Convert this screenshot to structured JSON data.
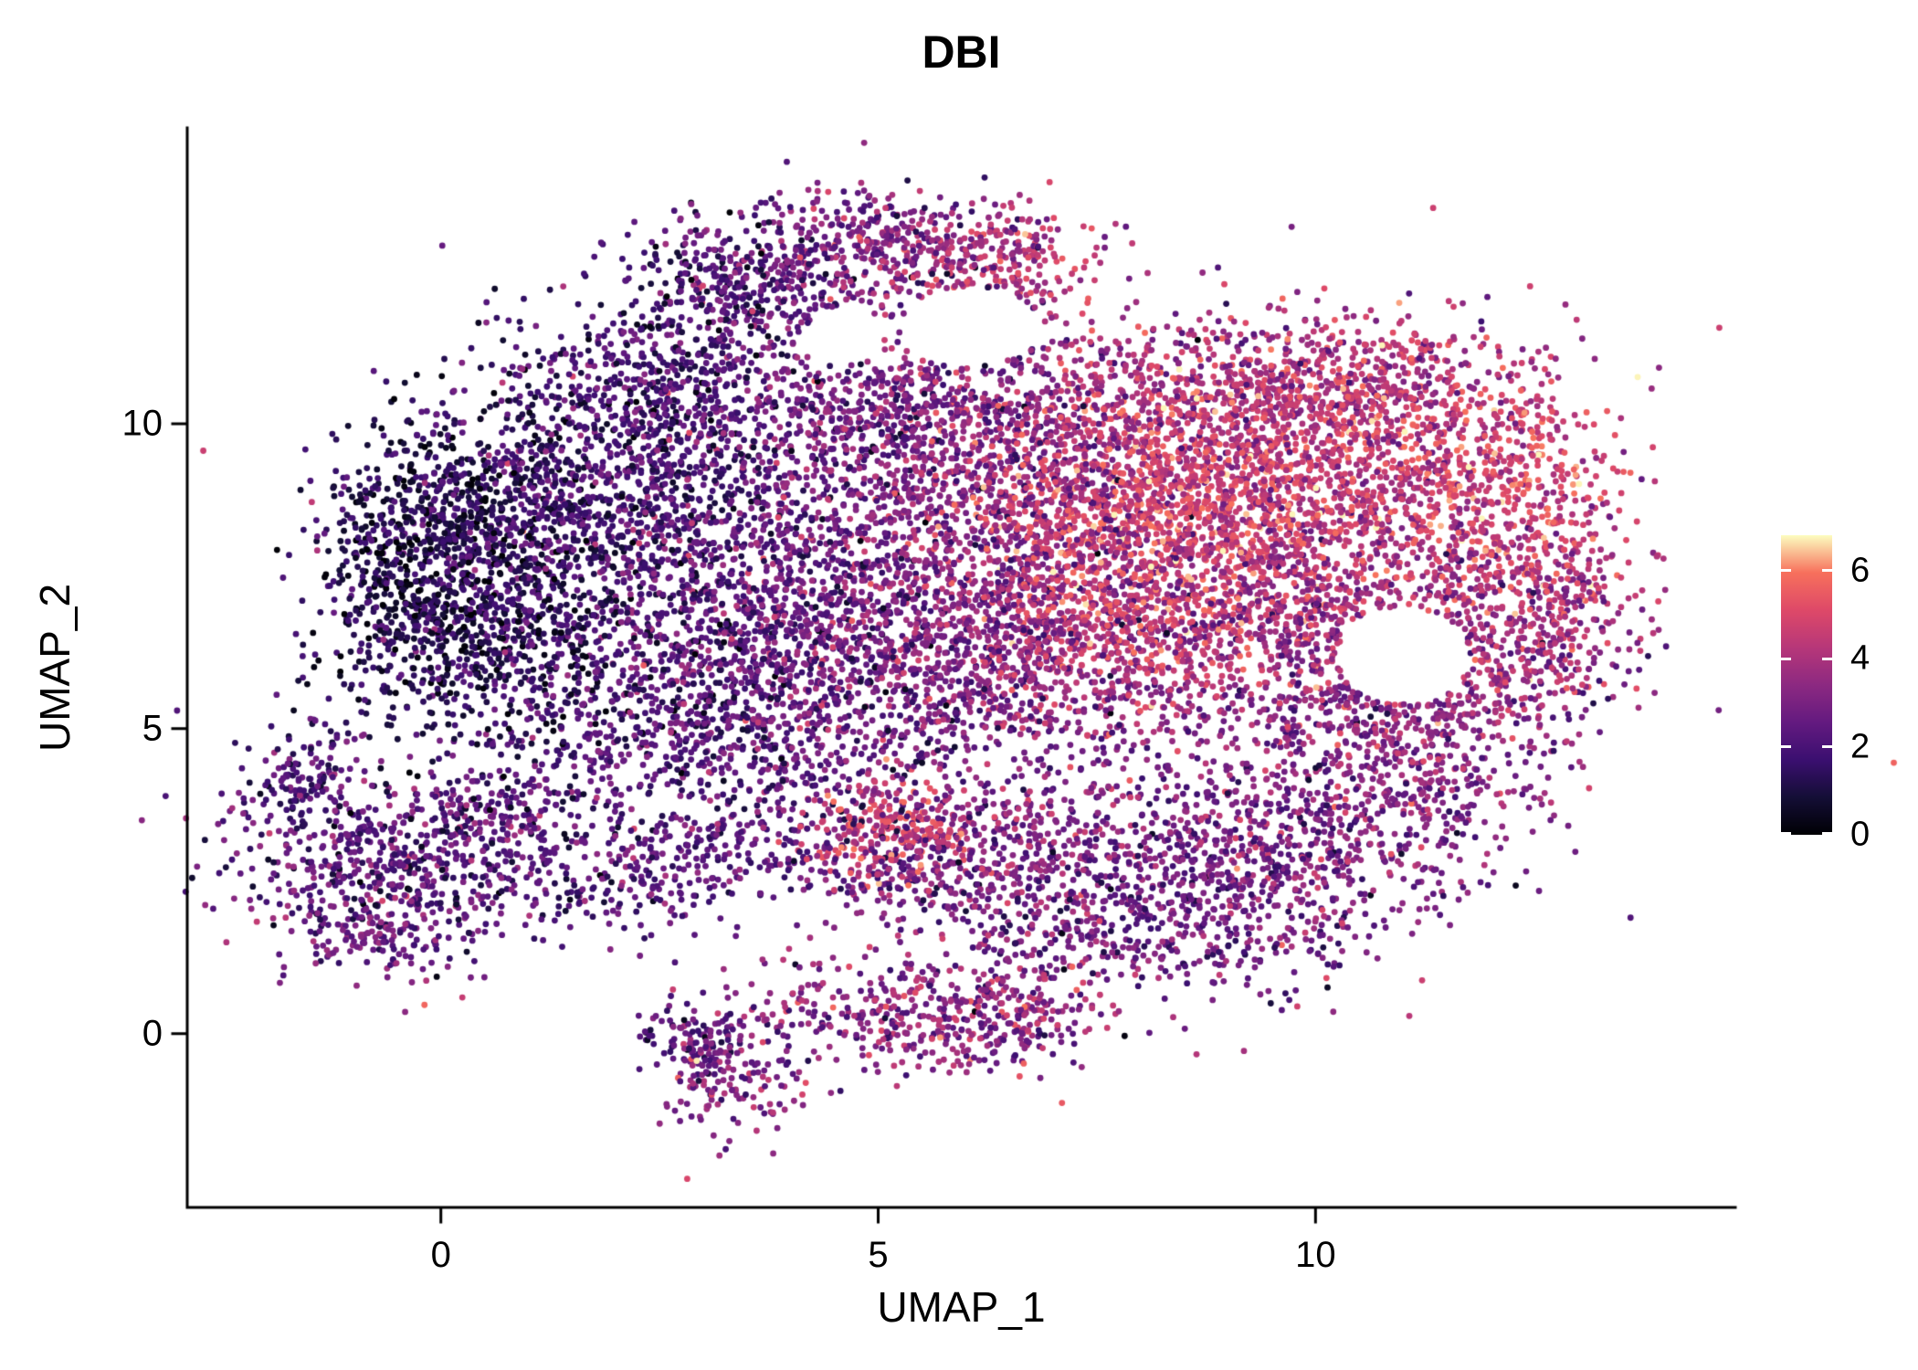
{
  "chart_data": {
    "type": "scatter",
    "title": "DBI",
    "xlabel": "UMAP_1",
    "ylabel": "UMAP_2",
    "xticks": [
      0,
      5,
      10
    ],
    "xtick_labels": [
      "0",
      "5",
      "10"
    ],
    "yticks": [
      0,
      5,
      10
    ],
    "ytick_labels": [
      "0",
      "5",
      "10"
    ],
    "xlim": [
      -2.9,
      14.8
    ],
    "ylim": [
      -2.85,
      14.85
    ],
    "grid": false,
    "background": "#ffffff",
    "axis_color": "#000000",
    "legend": {
      "type": "colorbar",
      "position": "right",
      "vmin": 0,
      "vmax": 6.8,
      "ticks": [
        0,
        2,
        4,
        6
      ],
      "tick_labels": [
        "0",
        "2",
        "4",
        "6"
      ],
      "palette": "magma",
      "stops": [
        "#000004",
        "#140e36",
        "#3b0f70",
        "#641a80",
        "#8c2981",
        "#b73779",
        "#de4968",
        "#f7705c",
        "#fcfdbf"
      ]
    },
    "point_radius_px": 3.4,
    "seed": 1337,
    "cluster_fields": [
      "n",
      "cx",
      "cy",
      "sx",
      "sy",
      "value_mean",
      "value_sd"
    ],
    "clusters": [
      [
        500,
        -0.4,
        7.6,
        0.55,
        1.0,
        1.0,
        0.7
      ],
      [
        700,
        0.6,
        8.2,
        0.8,
        1.2,
        1.4,
        0.8
      ],
      [
        500,
        0.8,
        6.3,
        0.9,
        0.9,
        1.4,
        0.8
      ],
      [
        700,
        2.0,
        9.0,
        1.0,
        1.1,
        1.8,
        0.8
      ],
      [
        400,
        2.6,
        10.8,
        0.8,
        0.8,
        1.8,
        0.8
      ],
      [
        350,
        3.6,
        12.3,
        0.7,
        0.6,
        2.2,
        0.9
      ],
      [
        350,
        5.0,
        12.9,
        0.8,
        0.45,
        3.0,
        1.0
      ],
      [
        220,
        6.3,
        12.6,
        0.6,
        0.5,
        4.2,
        0.8
      ],
      [
        600,
        3.4,
        7.6,
        1.1,
        1.4,
        2.2,
        0.8
      ],
      [
        450,
        3.2,
        5.9,
        1.0,
        0.8,
        2.2,
        0.9
      ],
      [
        600,
        5.0,
        8.3,
        1.1,
        1.4,
        2.9,
        0.9
      ],
      [
        400,
        5.0,
        6.2,
        1.0,
        0.9,
        2.9,
        0.9
      ],
      [
        350,
        5.2,
        10.3,
        0.9,
        0.7,
        2.7,
        0.9
      ],
      [
        450,
        6.7,
        9.7,
        1.0,
        0.9,
        3.6,
        0.9
      ],
      [
        500,
        6.6,
        7.6,
        0.9,
        1.1,
        3.6,
        0.9
      ],
      [
        350,
        6.8,
        5.9,
        1.0,
        0.7,
        3.3,
        0.9
      ],
      [
        800,
        7.9,
        8.4,
        0.9,
        1.1,
        5.0,
        0.8
      ],
      [
        500,
        8.3,
        6.7,
        1.0,
        0.8,
        4.3,
        0.8
      ],
      [
        500,
        9.2,
        9.0,
        0.9,
        0.9,
        4.6,
        0.8
      ],
      [
        400,
        8.6,
        10.5,
        1.1,
        0.7,
        3.9,
        0.9
      ],
      [
        350,
        10.3,
        10.4,
        1.0,
        0.6,
        4.1,
        0.9
      ],
      [
        450,
        10.4,
        8.6,
        0.9,
        0.9,
        4.3,
        0.9
      ],
      [
        350,
        10.0,
        6.8,
        0.9,
        0.8,
        3.7,
        0.9
      ],
      [
        300,
        11.6,
        9.5,
        0.8,
        0.7,
        4.8,
        0.8
      ],
      [
        300,
        12.4,
        8.3,
        0.6,
        0.9,
        4.7,
        0.9
      ],
      [
        250,
        11.9,
        6.9,
        0.7,
        0.8,
        3.9,
        0.9
      ],
      [
        250,
        11.2,
        5.6,
        0.8,
        0.6,
        3.4,
        0.9
      ],
      [
        180,
        12.8,
        6.6,
        0.45,
        0.9,
        3.6,
        1.0
      ],
      [
        500,
        6.5,
        8.2,
        3.2,
        2.0,
        3.2,
        1.2
      ],
      [
        200,
        4.2,
        4.9,
        1.2,
        0.5,
        2.4,
        0.9
      ],
      [
        150,
        2.5,
        4.6,
        0.7,
        0.5,
        2.0,
        0.8
      ],
      [
        200,
        10.8,
        10.9,
        1.1,
        0.5,
        4.3,
        0.9
      ],
      [
        650,
        -0.5,
        2.8,
        0.95,
        0.8,
        2.3,
        0.9
      ],
      [
        120,
        -1.6,
        4.2,
        0.3,
        0.45,
        2.2,
        0.8
      ],
      [
        150,
        0.9,
        3.6,
        0.5,
        0.5,
        2.2,
        0.9
      ],
      [
        100,
        -0.9,
        1.6,
        0.6,
        0.3,
        2.6,
        0.9
      ],
      [
        300,
        3.6,
        3.1,
        1.2,
        0.5,
        2.2,
        0.8
      ],
      [
        120,
        2.2,
        2.4,
        0.6,
        0.4,
        2.1,
        0.8
      ],
      [
        220,
        5.1,
        3.4,
        0.5,
        0.4,
        4.8,
        0.7
      ],
      [
        250,
        6.3,
        3.2,
        0.8,
        0.5,
        3.4,
        0.9
      ],
      [
        150,
        5.6,
        2.4,
        0.8,
        0.4,
        3.0,
        0.9
      ],
      [
        550,
        8.5,
        2.6,
        1.2,
        0.85,
        2.8,
        0.9
      ],
      [
        450,
        10.0,
        3.3,
        1.0,
        0.8,
        3.0,
        0.9
      ],
      [
        220,
        11.2,
        4.3,
        0.7,
        0.6,
        3.3,
        0.9
      ],
      [
        150,
        7.2,
        1.8,
        0.7,
        0.5,
        2.7,
        0.9
      ],
      [
        120,
        9.3,
        1.4,
        0.8,
        0.4,
        2.9,
        0.9
      ],
      [
        380,
        5.4,
        0.3,
        0.95,
        0.5,
        3.3,
        1.0
      ],
      [
        160,
        3.3,
        -0.7,
        0.4,
        0.55,
        3.2,
        0.9
      ],
      [
        90,
        2.9,
        -0.1,
        0.35,
        0.3,
        2.2,
        0.8
      ],
      [
        120,
        6.6,
        0.4,
        0.5,
        0.5,
        3.6,
        1.0
      ],
      [
        120,
        4.5,
        4.3,
        1.5,
        0.4,
        2.5,
        0.9
      ],
      [
        150,
        9.4,
        5.2,
        1.0,
        0.5,
        3.3,
        0.9
      ]
    ],
    "holes": [
      {
        "cx": 11.0,
        "cy": 6.2,
        "rx": 0.75,
        "ry": 0.8
      },
      {
        "cx": 6.05,
        "cy": 11.6,
        "rx": 0.8,
        "ry": 0.65
      },
      {
        "cx": 4.6,
        "cy": 11.4,
        "rx": 0.45,
        "ry": 0.45
      }
    ]
  }
}
